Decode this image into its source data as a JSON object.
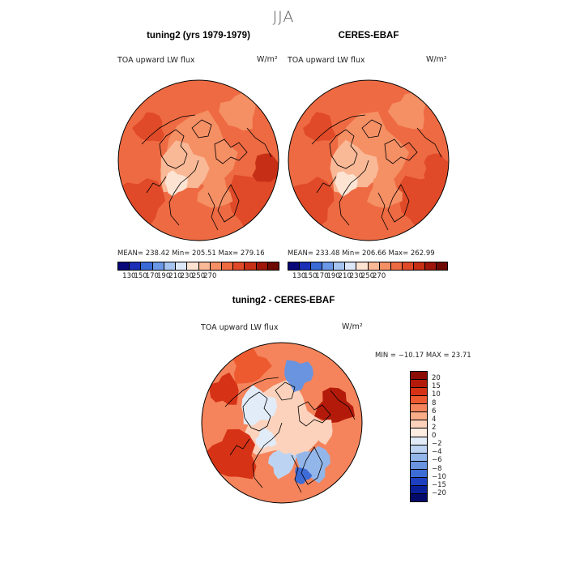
{
  "title": "JJA",
  "chart_data": [
    {
      "type": "heatmap",
      "projection": "north-polar-stereographic",
      "title": "tuning2 (yrs 1979-1979)",
      "variable": "TOA upward LW flux",
      "units": "W/m²",
      "stats": {
        "mean": 238.42,
        "min": 205.51,
        "max": 279.16
      },
      "stats_text": "MEAN= 238.42   Min= 205.51   Max= 279.16",
      "colorbar": {
        "levels": [
          130,
          150,
          170,
          190,
          210,
          230,
          250,
          270
        ],
        "tick_labels": [
          "130",
          "150",
          "170",
          "190",
          "210",
          "230",
          "250",
          "270"
        ],
        "colors": [
          "#08087a",
          "#1a2fb5",
          "#3a6ad6",
          "#6a98e6",
          "#a6c4f0",
          "#dce8f8",
          "#fde3d2",
          "#f9b896",
          "#f58f64",
          "#ee6a42",
          "#e04a28",
          "#c62f15",
          "#9e160a",
          "#6e0a04"
        ]
      }
    },
    {
      "type": "heatmap",
      "projection": "north-polar-stereographic",
      "title": "CERES-EBAF",
      "variable": "TOA upward LW flux",
      "units": "W/m²",
      "stats": {
        "mean": 233.48,
        "min": 206.66,
        "max": 262.99
      },
      "stats_text": "MEAN= 233.48   Min= 206.66   Max= 262.99",
      "colorbar": {
        "levels": [
          130,
          150,
          170,
          190,
          210,
          230,
          250,
          270
        ],
        "tick_labels": [
          "130",
          "150",
          "170",
          "190",
          "210",
          "230",
          "250",
          "270"
        ],
        "colors": [
          "#08087a",
          "#1a2fb5",
          "#3a6ad6",
          "#6a98e6",
          "#a6c4f0",
          "#dce8f8",
          "#fde3d2",
          "#f9b896",
          "#f58f64",
          "#ee6a42",
          "#e04a28",
          "#c62f15",
          "#9e160a",
          "#6e0a04"
        ]
      }
    },
    {
      "type": "heatmap",
      "projection": "north-polar-stereographic",
      "title": "tuning2 - CERES-EBAF",
      "variable": "TOA upward LW flux",
      "units": "W/m²",
      "stats": {
        "min": -10.17,
        "max": 23.71
      },
      "stats_text": "MIN = −10.17 MAX =  23.71",
      "colorbar": {
        "levels": [
          20,
          15,
          10,
          8,
          6,
          4,
          2,
          0,
          -2,
          -4,
          -6,
          -8,
          -10,
          -15,
          -20
        ],
        "tick_labels": [
          "20",
          "15",
          "10",
          "8",
          "6",
          "4",
          "2",
          "0",
          "−2",
          "−4",
          "−6",
          "−8",
          "−10",
          "−15",
          "−20"
        ],
        "colors": [
          "#8a0c04",
          "#b41a0a",
          "#d63216",
          "#ee5a30",
          "#f5845c",
          "#f9ac88",
          "#fcd2bc",
          "#fdece2",
          "#e2ecf8",
          "#bcd4f2",
          "#92b6ea",
          "#6a94e0",
          "#3e6cd6",
          "#1e40c0",
          "#0a209a",
          "#040a6a"
        ]
      }
    }
  ]
}
